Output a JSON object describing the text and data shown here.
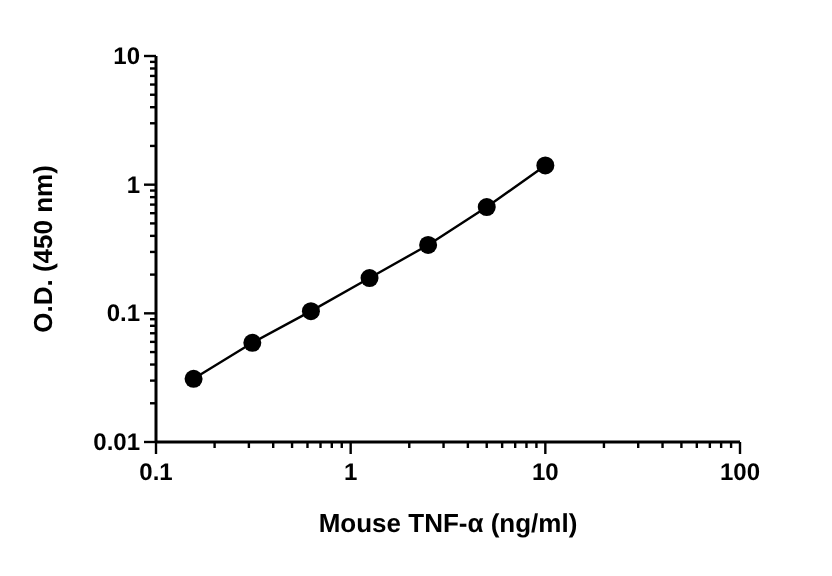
{
  "chart_data": {
    "type": "line",
    "xlabel": "Mouse TNF-α (ng/ml)",
    "ylabel": "O.D. (450 nm)",
    "log": "xy",
    "marker": "circle",
    "line_style": "solid",
    "x": [
      0.156,
      0.3125,
      0.625,
      1.25,
      2.5,
      5,
      10
    ],
    "series": [
      {
        "color": "#000000",
        "values": [
          0.031,
          0.059,
          0.104,
          0.188,
          0.34,
          0.67,
          1.41
        ]
      }
    ],
    "xlim": [
      0.1,
      100
    ],
    "ylim": [
      0.01,
      10
    ],
    "xticks": [
      0.1,
      {
        "value": 0.2,
        "label": null
      },
      {
        "value": 0.3,
        "label": null
      },
      {
        "value": 0.4,
        "label": null
      },
      {
        "value": 0.5,
        "label": null
      },
      {
        "value": 0.6,
        "label": null
      },
      {
        "value": 0.7,
        "label": null
      },
      {
        "value": 0.8,
        "label": null
      },
      {
        "value": 0.9,
        "label": null
      },
      1,
      {
        "value": 2,
        "label": null
      },
      {
        "value": 3,
        "label": null
      },
      {
        "value": 4,
        "label": null
      },
      {
        "value": 5,
        "label": null
      },
      {
        "value": 6,
        "label": null
      },
      {
        "value": 7,
        "label": null
      },
      {
        "value": 8,
        "label": null
      },
      {
        "value": 9,
        "label": null
      },
      10,
      {
        "value": 20,
        "label": null
      },
      {
        "value": 30,
        "label": null
      },
      {
        "value": 40,
        "label": null
      },
      {
        "value": 50,
        "label": null
      },
      {
        "value": 60,
        "label": null
      },
      {
        "value": 70,
        "label": null
      },
      {
        "value": 80,
        "label": null
      },
      {
        "value": 90,
        "label": null
      },
      100
    ],
    "yticks": [
      0.01,
      {
        "value": 0.02,
        "label": null
      },
      {
        "value": 0.03,
        "label": null
      },
      {
        "value": 0.04,
        "label": null
      },
      {
        "value": 0.05,
        "label": null
      },
      {
        "value": 0.06,
        "label": null
      },
      {
        "value": 0.07,
        "label": null
      },
      {
        "value": 0.08,
        "label": null
      },
      {
        "value": 0.09,
        "label": null
      },
      0.1,
      {
        "value": 0.2,
        "label": null
      },
      {
        "value": 0.3,
        "label": null
      },
      {
        "value": 0.4,
        "label": null
      },
      {
        "value": 0.5,
        "label": null
      },
      {
        "value": 0.6,
        "label": null
      },
      {
        "value": 0.7,
        "label": null
      },
      {
        "value": 0.8,
        "label": null
      },
      {
        "value": 0.9,
        "label": null
      },
      1,
      {
        "value": 2,
        "label": null
      },
      {
        "value": 3,
        "label": null
      },
      {
        "value": 4,
        "label": null
      },
      {
        "value": 5,
        "label": null
      },
      {
        "value": 6,
        "label": null
      },
      {
        "value": 7,
        "label": null
      },
      {
        "value": 8,
        "label": null
      },
      {
        "value": 9,
        "label": null
      },
      10
    ]
  }
}
